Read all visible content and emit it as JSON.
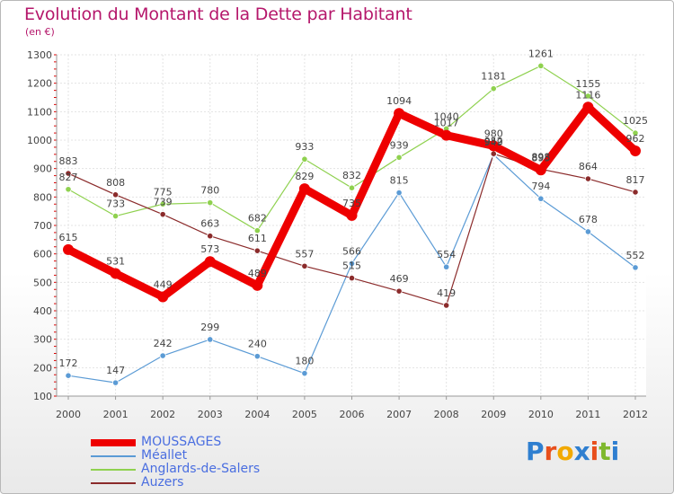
{
  "title": "Evolution du Montant de la Dette par Habitant",
  "subtitle": "(en €)",
  "brand": {
    "text": "Proxiti",
    "letter_colors": [
      "#2f7fd0",
      "#e84f1c",
      "#f2a900",
      "#2f7fd0",
      "#e84f1c",
      "#7fb82e",
      "#2f7fd0"
    ]
  },
  "chart_data": {
    "type": "line",
    "x": [
      "2000",
      "2001",
      "2002",
      "2003",
      "2004",
      "2005",
      "2006",
      "2007",
      "2008",
      "2009",
      "2010",
      "2011",
      "2012"
    ],
    "ylim": [
      100,
      1300
    ],
    "yticks": [
      100,
      200,
      300,
      400,
      500,
      600,
      700,
      800,
      900,
      1000,
      1100,
      1200,
      1300
    ],
    "grid": true,
    "legend_position": "bottom-left",
    "series": [
      {
        "name": "MOUSSAGES",
        "color": "#ee0000",
        "values": [
          615,
          531,
          449,
          573,
          489,
          829,
          735,
          1094,
          1017,
          980,
          895,
          1116,
          962
        ]
      },
      {
        "name": "Méallet",
        "color": "#5b9bd5",
        "values": [
          172,
          147,
          242,
          299,
          240,
          180,
          566,
          815,
          554,
          949,
          794,
          678,
          552
        ]
      },
      {
        "name": "Anglards-de-Salers",
        "color": "#8fd14f",
        "values": [
          827,
          733,
          775,
          780,
          682,
          933,
          832,
          939,
          1040,
          1181,
          1261,
          1155,
          1025
        ]
      },
      {
        "name": "Auzers",
        "color": "#8b2b2b",
        "values": [
          883,
          808,
          739,
          663,
          611,
          557,
          515,
          469,
          419,
          952,
          898,
          864,
          817
        ]
      }
    ]
  }
}
